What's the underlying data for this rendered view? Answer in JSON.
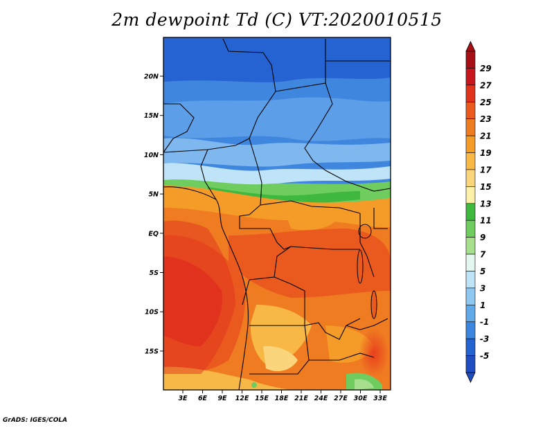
{
  "title": "2m dewpoint Td (C) VT:2020010515",
  "credit": "GrADS: IGES/COLA",
  "map": {
    "lat_ticks": [
      "20N",
      "15N",
      "10N",
      "5N",
      "EQ",
      "5S",
      "10S",
      "15S"
    ],
    "lon_ticks": [
      "3E",
      "6E",
      "9E",
      "12E",
      "15E",
      "18E",
      "21E",
      "24E",
      "27E",
      "30E",
      "33E"
    ]
  },
  "legend": {
    "levels": [
      "29",
      "27",
      "25",
      "23",
      "21",
      "19",
      "17",
      "15",
      "13",
      "11",
      "9",
      "7",
      "5",
      "3",
      "1",
      "-1",
      "-3",
      "-5"
    ],
    "colors": [
      "#a50f15",
      "#c8161e",
      "#e0321c",
      "#ea5a1f",
      "#f07c22",
      "#f59b28",
      "#f8b845",
      "#fbd57c",
      "#fdf0a8",
      "#3fb83f",
      "#6fcd5f",
      "#a6e08c",
      "#e5f6ee",
      "#bfe4f7",
      "#8ec8f2",
      "#62a9ea",
      "#3c86df",
      "#2563d2",
      "#1f4ec2"
    ]
  }
}
